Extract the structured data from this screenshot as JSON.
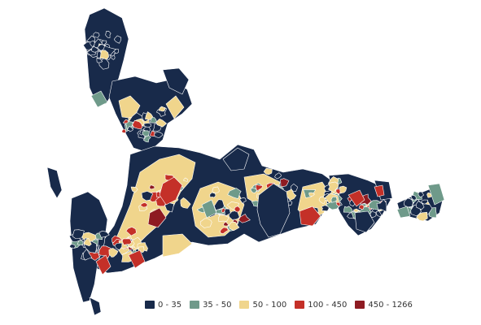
{
  "legend": {
    "items": [
      {
        "label": "0 - 35",
        "color": "#182a4a"
      },
      {
        "label": "35 - 50",
        "color": "#6f9a8a"
      },
      {
        "label": "50 - 100",
        "color": "#f0d58c"
      },
      {
        "label": "100 - 450",
        "color": "#c43028"
      },
      {
        "label": "450 - 1266",
        "color": "#8e1b22"
      }
    ]
  },
  "colors": {
    "background": "#ffffff",
    "border": "#ffffff"
  }
}
